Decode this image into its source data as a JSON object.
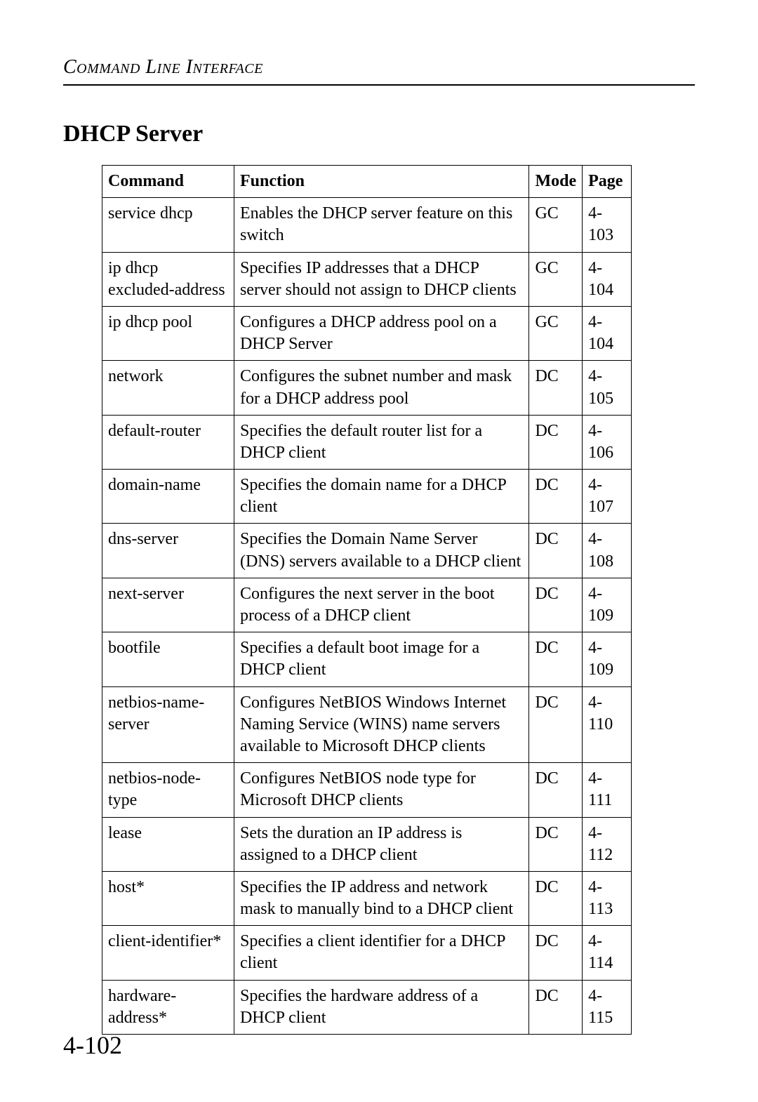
{
  "header": {
    "text": "Command Line Interface"
  },
  "section": {
    "title": "DHCP Server"
  },
  "table": {
    "headers": {
      "command": "Command",
      "function": "Function",
      "mode": "Mode",
      "page": "Page"
    },
    "rows": [
      {
        "command": "service dhcp",
        "function": "Enables the DHCP server feature on this switch",
        "mode": "GC",
        "page": "4-103"
      },
      {
        "command": "ip dhcp excluded-address",
        "function": "Specifies IP addresses that a DHCP server should not assign to DHCP clients",
        "mode": "GC",
        "page": "4-104"
      },
      {
        "command": "ip dhcp pool",
        "function": "Configures a DHCP address pool on a DHCP Server",
        "mode": "GC",
        "page": "4-104"
      },
      {
        "command": "network",
        "function": "Configures the subnet number and mask for a DHCP address pool",
        "mode": "DC",
        "page": "4-105"
      },
      {
        "command": "default-router",
        "function": "Specifies the default router list for a DHCP client",
        "mode": "DC",
        "page": "4-106"
      },
      {
        "command": "domain-name",
        "function": "Specifies the domain name for a DHCP client",
        "mode": "DC",
        "page": "4-107"
      },
      {
        "command": "dns-server",
        "function": "Specifies the Domain Name Server (DNS) servers available to a DHCP client",
        "mode": "DC",
        "page": "4-108"
      },
      {
        "command": "next-server",
        "function": "Configures the next server in the boot process of a DHCP client",
        "mode": "DC",
        "page": "4-109"
      },
      {
        "command": "bootfile",
        "function": "Specifies a default boot image for a DHCP client",
        "mode": "DC",
        "page": "4-109"
      },
      {
        "command": "netbios-name-server",
        "function": "Configures NetBIOS Windows Internet Naming Service (WINS) name servers available to Microsoft DHCP clients",
        "mode": "DC",
        "page": "4-110"
      },
      {
        "command": "netbios-node-type",
        "function": "Configures NetBIOS node type for Microsoft DHCP clients",
        "mode": "DC",
        "page": "4-111"
      },
      {
        "command": "lease",
        "function": "Sets the duration an IP address is assigned to a DHCP client",
        "mode": "DC",
        "page": "4-112"
      },
      {
        "command": "host*",
        "function": "Specifies the IP address and network mask to manually bind to a DHCP client",
        "mode": "DC",
        "page": "4-113"
      },
      {
        "command": "client-identifier*",
        "function": "Specifies a client identifier for a DHCP client",
        "mode": "DC",
        "page": "4-114"
      },
      {
        "command": "hardware-address*",
        "function": "Specifies the hardware address of a DHCP client",
        "mode": "DC",
        "page": "4-115"
      }
    ]
  },
  "pageNumber": "4-102"
}
